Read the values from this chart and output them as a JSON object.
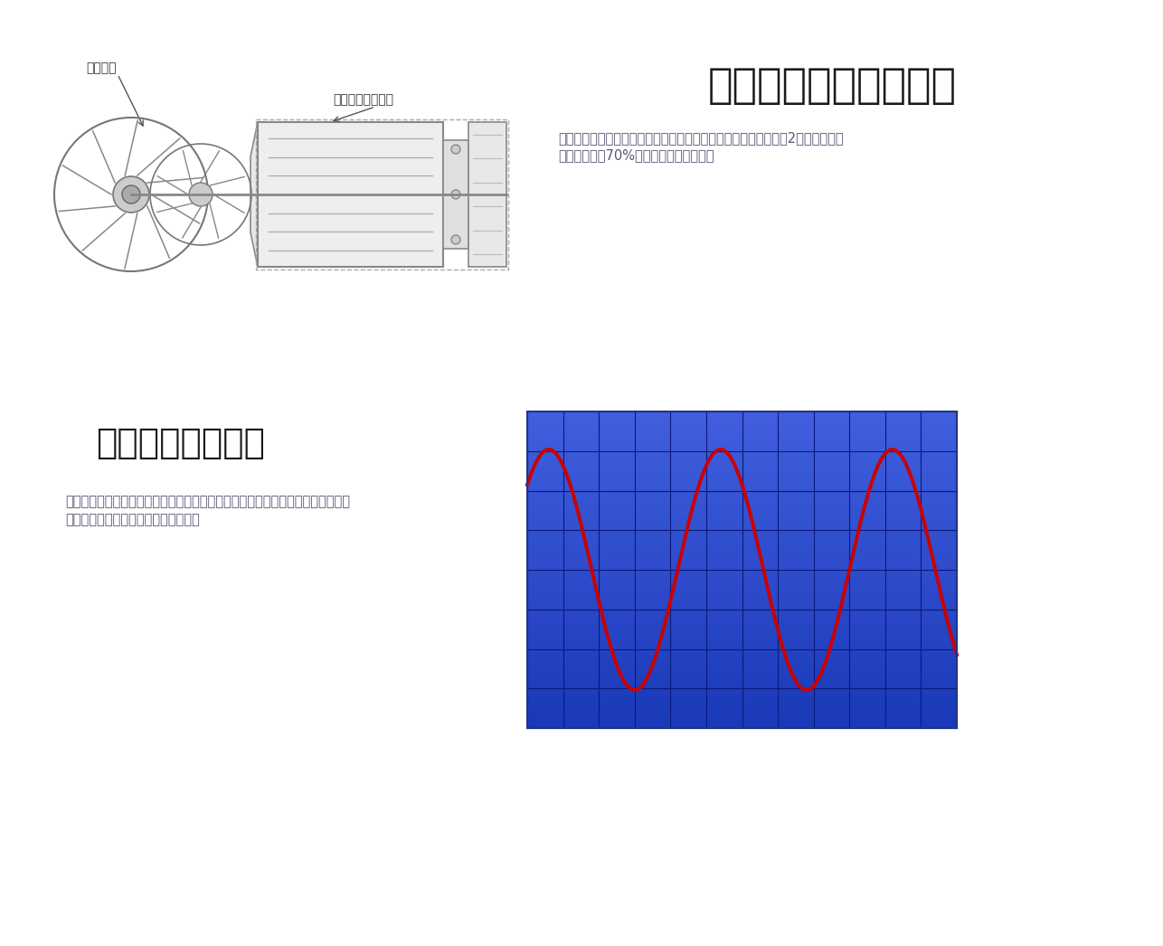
{
  "bg_color": "#ffffff",
  "top_title": "高速电机直驱双级叶轮",
  "top_desc_line1": "高速电机直接驱动双级叶轮，取消了常规离心机的增速齿轮装置和2个径向轴承，",
  "top_desc_line2": "机械损失降低70%以上，提高机组效率。",
  "label_impeller": "双级叶轮",
  "label_motor": "高速永磁同步电机",
  "bottom_title": "机载正弦波变频器",
  "bottom_desc_line1": "高速永磁同步无位置传感器精确控制技术，无需探头即可感知电机转子位置，时刻",
  "bottom_desc_line2": "精确监测电机角度位置，提高可靠性；",
  "sine_line_color": "#cc0000",
  "grid_color": "#0a1a77"
}
